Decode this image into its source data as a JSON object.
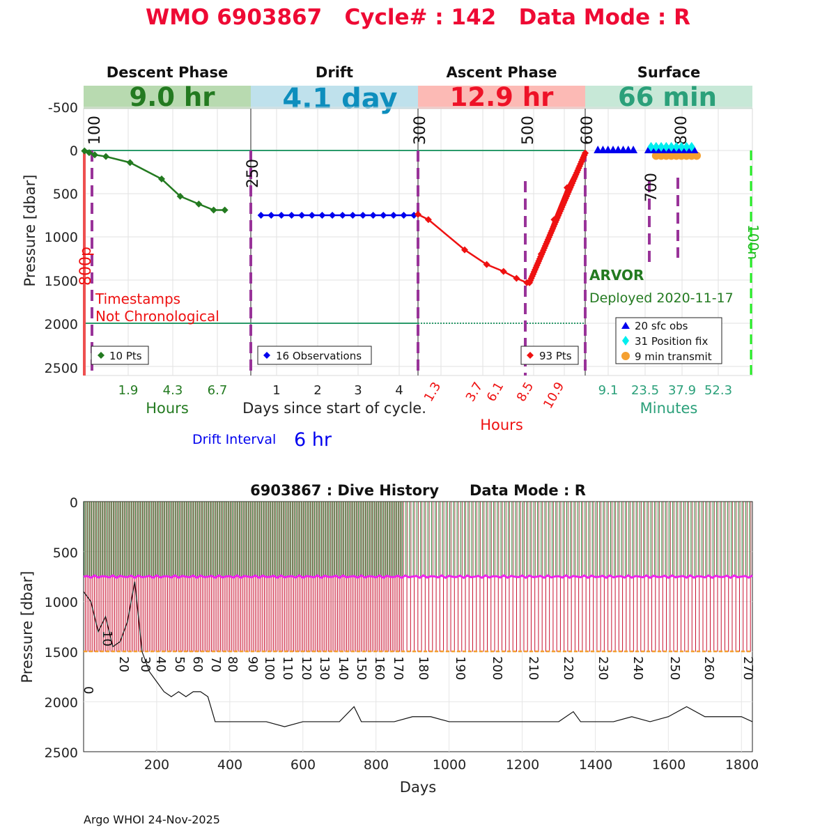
{
  "header": {
    "title": "WMO 6903867   Cycle# : 142   Data Mode : R",
    "title_color": "#ee0a34"
  },
  "phases": [
    {
      "key": "descent",
      "name": "Descent Phase",
      "duration": "9.0 hr",
      "band_color": "#b8dab0",
      "text_color": "#237a20"
    },
    {
      "key": "drift",
      "name": "Drift",
      "duration": "4.1 day",
      "band_color": "#bfe1ec",
      "text_color": "#0d8ebd"
    },
    {
      "key": "ascent",
      "name": "Ascent Phase",
      "duration": "12.9 hr",
      "band_color": "#fcbab5",
      "text_color": "#ee1227"
    },
    {
      "key": "surface",
      "name": "Surface",
      "duration": "66 min",
      "band_color": "#c7e8d7",
      "text_color": "#2ba07a"
    }
  ],
  "top_axis": {
    "ylabel": "Pressure [dbar]",
    "yticks": [
      "-500",
      "0",
      "500",
      "1000",
      "1500",
      "2000",
      "2500"
    ],
    "descent_ticks": [
      "1.9",
      "4.3",
      "6.7"
    ],
    "descent_label": "Hours",
    "drift_ticks": [
      "1",
      "2",
      "3",
      "4"
    ],
    "drift_label": "Days since start of cycle.",
    "ascent_ticks": [
      "1.3",
      "3.7",
      "6.1",
      "8.5",
      "10.9"
    ],
    "ascent_label": "Hours",
    "surface_ticks": [
      "9.1",
      "23.5",
      "37.9",
      "52.3"
    ],
    "surface_label": "Minutes"
  },
  "markers": [
    "100",
    "250",
    "300",
    "500",
    "600",
    "700",
    "800",
    "800p",
    "100n"
  ],
  "annotations": {
    "timestamps_line1": "Timestamps",
    "timestamps_line2": "Not Chronological",
    "float_type": "ARVOR",
    "deployed": "Deployed 2020-11-17",
    "drift_interval_label": "Drift Interval",
    "drift_interval_value": "6 hr"
  },
  "legends": {
    "descent": "10 Pts",
    "drift": "16 Observations",
    "ascent": "93 Pts",
    "surface": [
      "20 sfc obs",
      "31 Position fix",
      "9 min transmit"
    ]
  },
  "colors": {
    "descent": "#237a20",
    "drift": "#0000ee",
    "ascent": "#ee1111",
    "surface_obs": "#0000ee",
    "position_fix": "#00eeee",
    "transmit": "#f5a030",
    "marker": "#993399",
    "green_line": "#2a9a6a"
  },
  "history": {
    "title": "6903867 : Dive History      Data Mode : R",
    "xlabel": "Days",
    "ylabel": "Pressure [dbar]",
    "xticks": [
      "200",
      "400",
      "600",
      "800",
      "1000",
      "1200",
      "1400",
      "1600",
      "1800"
    ],
    "yticks": [
      "0",
      "500",
      "1000",
      "1500",
      "2000",
      "2500"
    ],
    "cycle_labels": [
      "0",
      "10",
      "20",
      "30",
      "40",
      "50",
      "60",
      "70",
      "80",
      "90",
      "100",
      "110",
      "120",
      "130",
      "140",
      "150",
      "160",
      "170",
      "180",
      "190",
      "200",
      "210",
      "220",
      "230",
      "240",
      "250",
      "260",
      "270"
    ]
  },
  "footer": "Argo WHOI 24-Nov-2025",
  "chart_data": [
    {
      "type": "line",
      "title": "WMO 6903867   Cycle# : 142   Data Mode : R",
      "ylabel": "Pressure [dbar]",
      "ylim": [
        -750,
        2600
      ],
      "panels": [
        {
          "name": "Descent Phase",
          "xunit": "hours",
          "xlim": [
            0,
            9.0
          ],
          "x": [
            0.05,
            0.3,
            0.6,
            1.2,
            2.5,
            4.2,
            5.2,
            6.2,
            7.0,
            7.6
          ],
          "y": [
            5,
            25,
            50,
            70,
            140,
            330,
            530,
            620,
            690,
            690
          ]
        },
        {
          "name": "Drift",
          "xunit": "days",
          "xlim": [
            0,
            4.1
          ],
          "x": [
            0.25,
            0.5,
            0.75,
            1.0,
            1.25,
            1.5,
            1.75,
            2.0,
            2.25,
            2.5,
            2.75,
            3.0,
            3.25,
            3.5,
            3.75,
            4.0
          ],
          "y": [
            750,
            750,
            750,
            750,
            750,
            750,
            750,
            750,
            750,
            750,
            750,
            750,
            750,
            750,
            750,
            750
          ]
        },
        {
          "name": "Ascent Phase",
          "xunit": "hours",
          "xlim": [
            0,
            12.9
          ],
          "x": [
            0,
            0.8,
            3.6,
            5.3,
            6.6,
            7.6,
            8.4,
            8.6,
            9.5,
            10.5,
            11.5,
            12.9
          ],
          "y": [
            740,
            800,
            1150,
            1320,
            1400,
            1480,
            1530,
            1530,
            1200,
            800,
            430,
            30
          ]
        },
        {
          "name": "Surface",
          "xunit": "minutes",
          "xlim": [
            0,
            66
          ],
          "series": [
            {
              "name": "20 sfc obs",
              "x": [
                5,
                7,
                9,
                11,
                13,
                15,
                17,
                19,
                21,
                23,
                25,
                27,
                29,
                31,
                33,
                35,
                37,
                39,
                41,
                43
              ],
              "y": [
                0,
                0,
                0,
                0,
                0,
                0,
                0,
                0,
                0,
                0,
                0,
                0,
                0,
                0,
                0,
                0,
                0,
                0,
                0,
                0
              ]
            },
            {
              "name": "31 Position fix",
              "x": [
                26,
                28,
                30,
                32,
                34,
                36,
                38,
                40,
                42
              ],
              "y": [
                -50,
                -50,
                -50,
                -50,
                -50,
                -50,
                -50,
                -50,
                -50
              ]
            },
            {
              "name": "9 min transmit",
              "x": [
                28,
                30,
                32,
                34,
                36,
                38,
                40,
                42,
                44
              ],
              "y": [
                60,
                60,
                60,
                60,
                60,
                60,
                60,
                60,
                60
              ]
            }
          ]
        }
      ]
    },
    {
      "type": "line",
      "title": "6903867 : Dive History      Data Mode : R",
      "xlabel": "Days",
      "ylabel": "Pressure [dbar]",
      "xlim": [
        0,
        1830
      ],
      "ylim": [
        0,
        2500
      ],
      "series": [
        {
          "name": "Profile depth",
          "values": [
            1500,
            1500,
            1500,
            1500,
            1500
          ]
        },
        {
          "name": "Parking depth",
          "values": [
            750,
            750,
            750,
            750,
            750
          ]
        },
        {
          "name": "Bottom depth estimate",
          "x": [
            0,
            20,
            40,
            60,
            80,
            100,
            120,
            140,
            160,
            180,
            200,
            220,
            240,
            260,
            280,
            300,
            320,
            340,
            360,
            380,
            400,
            450,
            500,
            550,
            600,
            650,
            700,
            740,
            760,
            800,
            850,
            900,
            950,
            1000,
            1050,
            1100,
            1150,
            1200,
            1250,
            1300,
            1340,
            1360,
            1400,
            1450,
            1500,
            1550,
            1600,
            1650,
            1700,
            1750,
            1800,
            1830
          ],
          "y": [
            900,
            1000,
            1300,
            1150,
            1450,
            1400,
            1200,
            800,
            1500,
            1700,
            1800,
            1900,
            1950,
            1900,
            1950,
            1900,
            1900,
            1950,
            2200,
            2200,
            2200,
            2200,
            2200,
            2250,
            2200,
            2200,
            2200,
            2050,
            2200,
            2200,
            2200,
            2150,
            2150,
            2200,
            2200,
            2200,
            2200,
            2200,
            2200,
            2200,
            2100,
            2200,
            2200,
            2200,
            2150,
            2200,
            2150,
            2050,
            2150,
            2150,
            2150,
            2200
          ]
        }
      ]
    }
  ]
}
